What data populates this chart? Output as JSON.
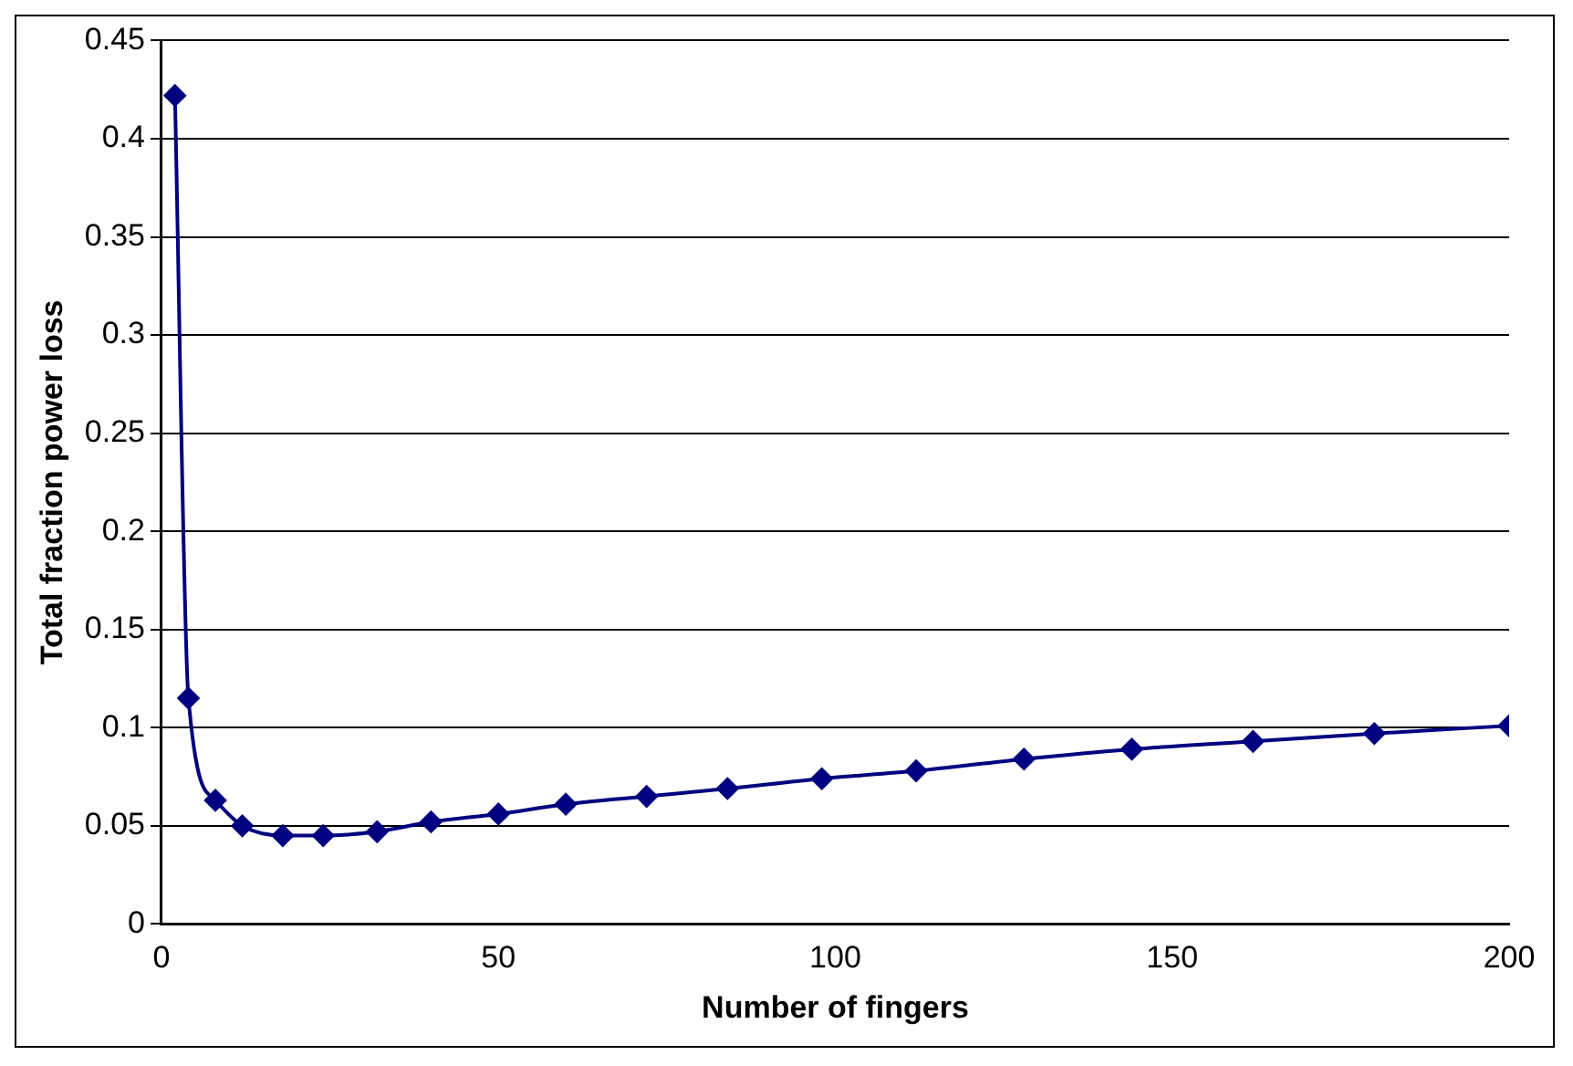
{
  "chart_data": {
    "type": "line",
    "xlabel": "Number of fingers",
    "ylabel": "Total fraction power loss",
    "x": [
      2,
      4,
      8,
      12,
      18,
      24,
      32,
      40,
      50,
      60,
      72,
      84,
      98,
      112,
      128,
      144,
      162,
      180,
      200
    ],
    "series": [
      {
        "color": "#000080",
        "values": [
          0.422,
          0.115,
          0.063,
          0.05,
          0.045,
          0.045,
          0.047,
          0.052,
          0.056,
          0.061,
          0.065,
          0.069,
          0.074,
          0.078,
          0.084,
          0.089,
          0.093,
          0.097,
          0.101
        ]
      }
    ],
    "xlim": [
      0,
      200
    ],
    "xticks": [
      0,
      50,
      100,
      150,
      200
    ],
    "ylim": [
      0,
      0.45
    ],
    "yticks": [
      0,
      0.05,
      0.1,
      0.15,
      0.2,
      0.25,
      0.3,
      0.35,
      0.4,
      0.45
    ],
    "grid": "y",
    "legend": false,
    "marker": "diamond",
    "line_style": "solid"
  }
}
